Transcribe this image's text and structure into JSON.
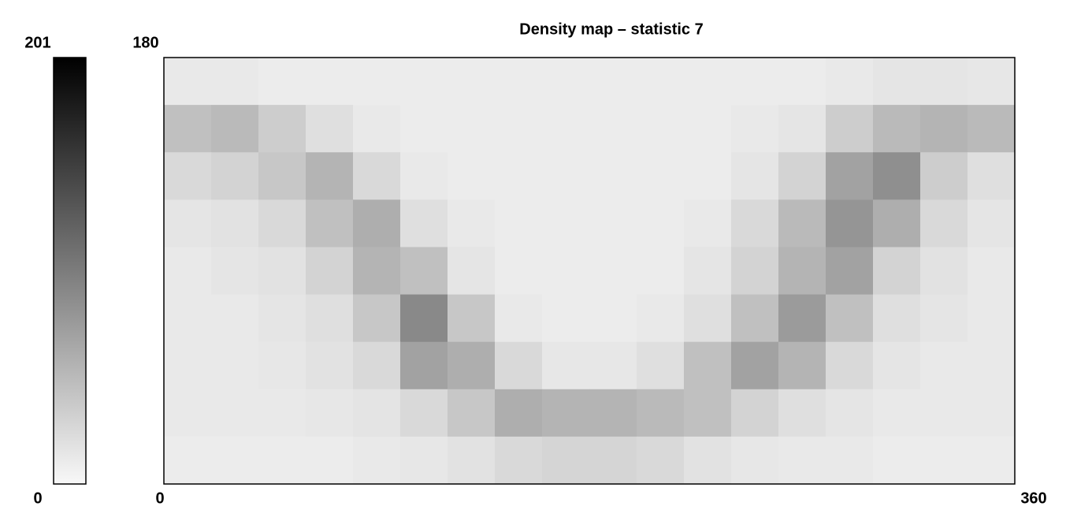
{
  "chart_data": {
    "type": "heatmap",
    "title": "Density map – statistic 7",
    "xlim": [
      0,
      360
    ],
    "ylim": [
      0,
      180
    ],
    "xticks": [
      0,
      360
    ],
    "yticks": [
      180
    ],
    "colorbar_lim": [
      0,
      201
    ],
    "colorbar_ticks": [
      0,
      201
    ],
    "colormap": [
      "#f8f8f8",
      "#000000"
    ],
    "z": [
      [
        12,
        12,
        10,
        10,
        10,
        10,
        10,
        10,
        10,
        10,
        10,
        10,
        10,
        10,
        12,
        15,
        15,
        14
      ],
      [
        45,
        50,
        35,
        20,
        12,
        10,
        10,
        10,
        10,
        10,
        10,
        10,
        12,
        15,
        35,
        50,
        55,
        50
      ],
      [
        25,
        30,
        40,
        55,
        25,
        12,
        10,
        10,
        10,
        10,
        10,
        10,
        15,
        30,
        70,
        85,
        35,
        20
      ],
      [
        15,
        18,
        25,
        45,
        60,
        20,
        12,
        10,
        10,
        10,
        10,
        12,
        25,
        50,
        80,
        60,
        25,
        15
      ],
      [
        12,
        15,
        18,
        30,
        55,
        45,
        15,
        10,
        10,
        10,
        10,
        15,
        30,
        55,
        70,
        30,
        18,
        12
      ],
      [
        12,
        12,
        15,
        20,
        40,
        90,
        40,
        12,
        10,
        10,
        12,
        20,
        45,
        75,
        45,
        20,
        15,
        12
      ],
      [
        12,
        12,
        14,
        18,
        25,
        70,
        60,
        25,
        14,
        14,
        20,
        45,
        70,
        55,
        25,
        15,
        12,
        12
      ],
      [
        12,
        12,
        12,
        14,
        16,
        25,
        40,
        60,
        55,
        55,
        50,
        45,
        30,
        20,
        15,
        12,
        12,
        12
      ],
      [
        10,
        10,
        10,
        10,
        12,
        14,
        18,
        25,
        28,
        28,
        25,
        18,
        14,
        12,
        12,
        10,
        10,
        10
      ]
    ]
  }
}
